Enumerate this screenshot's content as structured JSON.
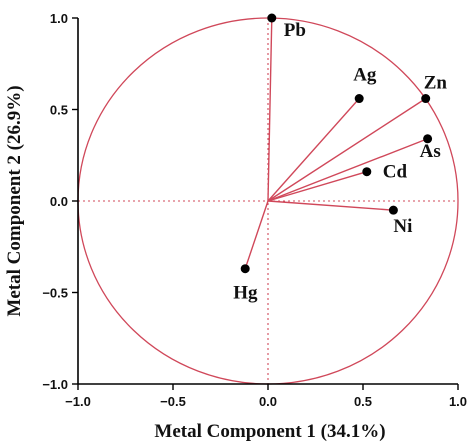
{
  "chart_data": {
    "type": "scatter",
    "title": "",
    "xlabel": "Metal Component 1 (34.1%)",
    "ylabel": "Metal Component 2 (26.9%)",
    "xlim": [
      -1.0,
      1.0
    ],
    "ylim": [
      -1.0,
      1.0
    ],
    "xticks": [
      "−1.0",
      "−0.5",
      "0.0",
      "0.5",
      "1.0"
    ],
    "yticks": [
      "1.0",
      "0.5",
      "0.0",
      "−0.5",
      "−1.0"
    ],
    "grid": false,
    "unit_circle": true,
    "reference_lines": {
      "x": 0,
      "y": 0,
      "style": "dotted"
    },
    "points": [
      {
        "label": "Pb",
        "x": 0.02,
        "y": 1.0
      },
      {
        "label": "Ag",
        "x": 0.48,
        "y": 0.56
      },
      {
        "label": "Zn",
        "x": 0.83,
        "y": 0.56
      },
      {
        "label": "As",
        "x": 0.84,
        "y": 0.34
      },
      {
        "label": "Cd",
        "x": 0.52,
        "y": 0.16
      },
      {
        "label": "Ni",
        "x": 0.66,
        "y": -0.05
      },
      {
        "label": "Hg",
        "x": -0.12,
        "y": -0.37
      }
    ]
  },
  "colors": {
    "circle": "#d0485a",
    "vectors": "#d0485a",
    "reference_lines": "#d0485a",
    "points": "#000000",
    "axes": "#000000"
  }
}
